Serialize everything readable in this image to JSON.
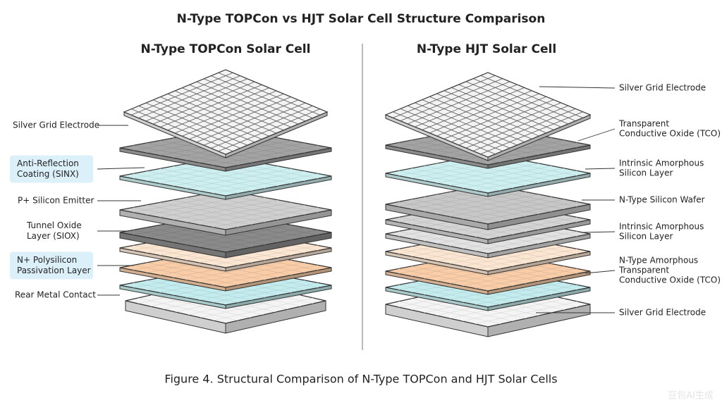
{
  "title": "N-Type TOPCon vs HJT Solar Cell Structure Comparison",
  "left_panel": {
    "title": "N-Type TOPCon Solar Cell",
    "labels": [
      {
        "lines": [
          "Silver Grid Electrode"
        ],
        "highlighted": false
      },
      {
        "lines": [
          "Anti-Reflection",
          "Coating (SINX)"
        ],
        "highlighted": true
      },
      {
        "lines": [
          "P+ Silicon Emitter"
        ],
        "highlighted": false
      },
      {
        "lines": [
          "Tunnel Oxide",
          "Layer (SIOX)"
        ],
        "highlighted": false
      },
      {
        "lines": [
          "N+ Polysilicon",
          "Passivation Layer"
        ],
        "highlighted": true
      },
      {
        "lines": [
          "Rear Metal Contact"
        ],
        "highlighted": false
      }
    ]
  },
  "right_panel": {
    "title": "N-Type HJT Solar Cell",
    "labels": [
      {
        "lines": [
          "Silver Grid Electrode"
        ]
      },
      {
        "lines": [
          "Transparent",
          "Conductive Oxide (TCO)"
        ]
      },
      {
        "lines": [
          "Intrinsic Amorphous",
          "Silicon Layer"
        ]
      },
      {
        "lines": [
          "N-Type Silicon Wafer"
        ]
      },
      {
        "lines": [
          "Intrinsic Amorphous",
          "Silicon Layer"
        ]
      },
      {
        "lines": [
          "N-Type Amorphous",
          "Transparent",
          "Conductive Oxide (TCO)"
        ]
      },
      {
        "lines": [
          "Silver Grid Electrode"
        ]
      }
    ]
  },
  "caption": "Figure 4. Structural Comparison of N-Type TOPCon and HJT Solar Cells",
  "watermark": "豆包AI生成"
}
